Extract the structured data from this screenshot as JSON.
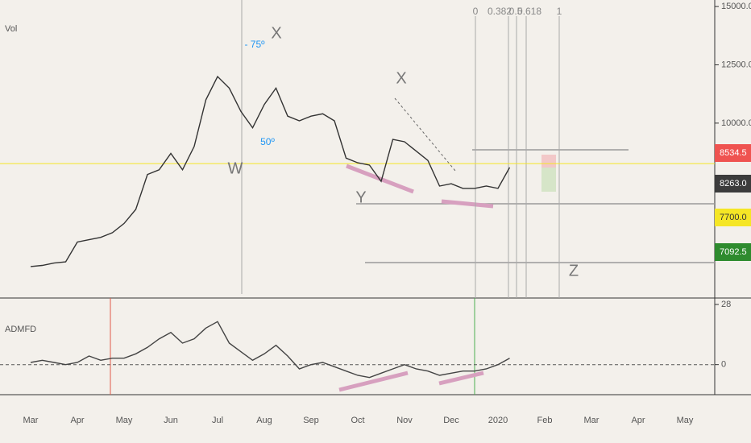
{
  "chart_data": [
    {
      "type": "line",
      "label": "Vol",
      "categories": [
        "Mar",
        null,
        null,
        null,
        "Apr",
        null,
        null,
        null,
        "May",
        null,
        null,
        null,
        "Jun",
        null,
        null,
        null,
        "Jul",
        null,
        null,
        null,
        "Aug",
        null,
        null,
        null,
        "Sep",
        null,
        null,
        null,
        "Oct",
        null,
        null,
        null,
        "Nov",
        null,
        null,
        null,
        "Dec",
        null,
        null,
        null,
        "2020",
        null,
        null,
        null,
        "Feb",
        null,
        null,
        null,
        "Mar",
        null,
        null,
        null,
        "Apr",
        null,
        null,
        null,
        "May"
      ],
      "values": [
        3850,
        3900,
        4000,
        4050,
        4900,
        5000,
        5100,
        5300,
        5700,
        6300,
        7800,
        8000,
        8700,
        8000,
        9000,
        11000,
        12000,
        11500,
        10500,
        9800,
        10800,
        11500,
        10300,
        10100,
        10300,
        10400,
        10100,
        8500,
        8300,
        8200,
        7500,
        9300,
        9200,
        8800,
        8400,
        7300,
        7400,
        7200,
        7200,
        7300,
        7200,
        8100,
        null,
        null,
        null,
        null,
        null,
        null,
        null,
        null,
        null,
        null,
        null,
        null,
        null,
        null,
        null
      ],
      "color": "#333333",
      "ylim": [
        2500,
        15280
      ],
      "yticks": [
        {
          "value": 10000,
          "label": "10000.0"
        },
        {
          "value": 12500,
          "label": "12500.0"
        },
        {
          "value": 15000,
          "label": "15000.0"
        }
      ],
      "price_level": 8263,
      "price_labels": [
        {
          "label": "8534.5",
          "color": "#ef5350"
        },
        {
          "label": "8263.0",
          "color": "#3c3c3c"
        },
        {
          "label": "7700.0",
          "color": "#f5e625"
        },
        {
          "label": "7092.5",
          "color": "#2e8b2e"
        }
      ]
    },
    {
      "type": "line",
      "label": "ADMFD",
      "values": [
        1,
        2,
        1,
        0,
        1,
        4,
        2,
        3,
        3,
        5,
        8,
        12,
        15,
        10,
        12,
        17,
        20,
        10,
        6,
        2,
        5,
        9,
        4,
        -2,
        0,
        1,
        -1,
        -3,
        -5,
        -6,
        -4,
        -2,
        0,
        -2,
        -3,
        -5,
        -4,
        -3,
        -3,
        -2,
        0,
        3,
        null,
        null,
        null,
        null,
        null,
        null,
        null,
        null,
        null,
        null,
        null,
        null,
        null,
        null,
        null
      ],
      "color": "#444444",
      "ylim": [
        -14,
        31
      ],
      "yticks": [
        0,
        28
      ]
    }
  ],
  "annotations": [
    "X",
    "- 75º",
    "50º",
    "W",
    "X",
    "Y",
    "Z",
    "0",
    "0.382",
    "0.5",
    "0.618",
    "1"
  ]
}
